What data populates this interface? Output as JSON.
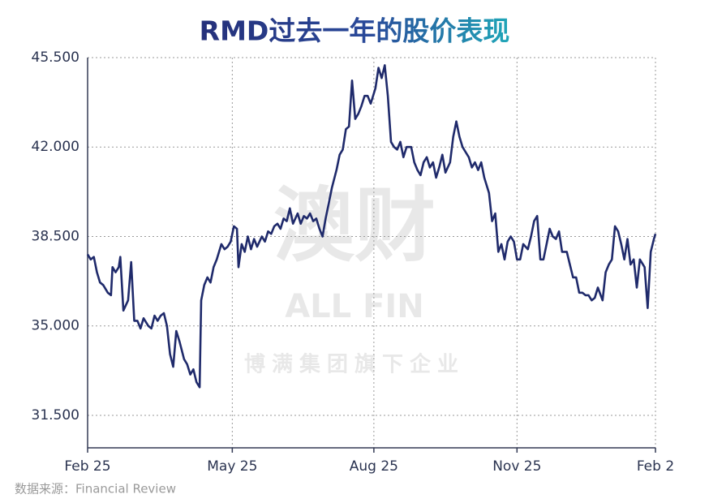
{
  "chart_data": {
    "type": "line",
    "title": "RMD过去一年的股价表现",
    "source": "数据来源：Financial Review",
    "watermark": [
      "澳财",
      "ALL FIN",
      "博满集团旗下企业"
    ],
    "xlim": [
      0,
      365
    ],
    "xticks": [
      {
        "value": 0,
        "label": "Feb 25"
      },
      {
        "value": 93,
        "label": "May 25"
      },
      {
        "value": 184,
        "label": "Aug 25"
      },
      {
        "value": 276,
        "label": "Nov 25"
      },
      {
        "value": 365,
        "label": "Feb 2"
      }
    ],
    "ylim": [
      30.23,
      45.5
    ],
    "yticks": [
      {
        "value": 31.5,
        "label": "31.500"
      },
      {
        "value": 35,
        "label": "35.000"
      },
      {
        "value": 38.5,
        "label": "38.500"
      },
      {
        "value": 42,
        "label": "42.000"
      },
      {
        "value": 45.5,
        "label": "45.500"
      }
    ],
    "grid": true,
    "x": [
      0,
      2,
      4,
      6,
      8,
      10,
      13,
      15,
      16,
      18,
      20,
      21,
      23,
      26,
      28,
      30,
      32,
      34,
      36,
      39,
      41,
      43,
      45,
      47,
      49,
      51,
      53,
      55,
      57,
      59,
      62,
      64,
      66,
      68,
      70,
      72,
      73,
      75,
      77,
      79,
      81,
      83,
      86,
      88,
      90,
      92,
      94,
      96,
      97,
      99,
      101,
      103,
      105,
      107,
      109,
      112,
      114,
      116,
      118,
      120,
      122,
      124,
      126,
      128,
      130,
      132,
      135,
      137,
      139,
      141,
      143,
      145,
      147,
      149,
      151,
      153,
      155,
      157,
      160,
      162,
      164,
      166,
      168,
      170,
      172,
      174,
      176,
      178,
      180,
      182,
      185,
      187,
      189,
      191,
      193,
      195,
      197,
      199,
      201,
      203,
      205,
      208,
      210,
      212,
      214,
      216,
      218,
      220,
      222,
      224,
      226,
      228,
      230,
      233,
      235,
      237,
      239,
      241,
      243,
      245,
      247,
      249,
      251,
      253,
      255,
      258,
      260,
      262,
      264,
      266,
      268,
      270,
      272,
      274,
      276,
      278,
      280,
      283,
      285,
      287,
      289,
      291,
      293,
      295,
      297,
      299,
      301,
      303,
      305,
      308,
      310,
      312,
      314,
      316,
      318,
      320,
      322,
      324,
      326,
      328,
      331,
      333,
      335,
      337,
      339,
      341,
      343,
      345,
      347,
      349,
      351,
      353,
      355,
      358,
      360,
      362,
      364,
      365
    ],
    "series": [
      {
        "color": "#1f2a6b",
        "values": [
          37.8,
          37.6,
          37.7,
          37.1,
          36.7,
          36.6,
          36.3,
          36.2,
          37.3,
          37.1,
          37.3,
          37.7,
          35.6,
          36.0,
          37.5,
          35.2,
          35.2,
          34.9,
          35.3,
          35.0,
          34.9,
          35.4,
          35.2,
          35.4,
          35.5,
          35.0,
          33.9,
          33.4,
          34.8,
          34.4,
          33.7,
          33.5,
          33.1,
          33.3,
          32.8,
          32.6,
          36.0,
          36.6,
          36.9,
          36.7,
          37.3,
          37.6,
          38.2,
          38.0,
          38.1,
          38.3,
          38.9,
          38.8,
          37.3,
          38.2,
          37.9,
          38.5,
          38.0,
          38.4,
          38.1,
          38.5,
          38.3,
          38.7,
          38.6,
          38.9,
          39.0,
          38.8,
          39.2,
          39.1,
          39.6,
          39.0,
          39.4,
          39.0,
          39.3,
          39.2,
          39.4,
          39.1,
          39.2,
          38.8,
          38.5,
          39.2,
          39.8,
          40.4,
          41.1,
          41.7,
          41.9,
          42.7,
          42.8,
          44.6,
          43.1,
          43.3,
          43.6,
          44.0,
          44.0,
          43.7,
          44.3,
          45.1,
          44.7,
          45.2,
          44.0,
          42.2,
          42.0,
          41.9,
          42.2,
          41.6,
          42.0,
          42.0,
          41.4,
          41.1,
          40.9,
          41.4,
          41.6,
          41.2,
          41.4,
          40.8,
          41.2,
          41.7,
          41.0,
          41.4,
          42.4,
          43.0,
          42.4,
          42.0,
          41.8,
          41.6,
          41.2,
          41.4,
          41.1,
          41.4,
          40.8,
          40.2,
          39.1,
          39.4,
          37.9,
          38.2,
          37.6,
          38.3,
          38.5,
          38.3,
          37.6,
          37.6,
          38.2,
          38.0,
          38.5,
          39.1,
          39.3,
          37.6,
          37.6,
          38.2,
          38.8,
          38.5,
          38.4,
          38.7,
          37.9,
          37.9,
          37.4,
          36.9,
          36.9,
          36.3,
          36.3,
          36.2,
          36.2,
          36.0,
          36.1,
          36.5,
          36.0,
          37.1,
          37.4,
          37.6,
          38.9,
          38.7,
          38.2,
          37.6,
          38.4,
          37.4,
          37.6,
          36.5,
          37.6,
          37.3,
          35.7,
          37.9,
          38.4,
          38.6
        ]
      }
    ]
  }
}
